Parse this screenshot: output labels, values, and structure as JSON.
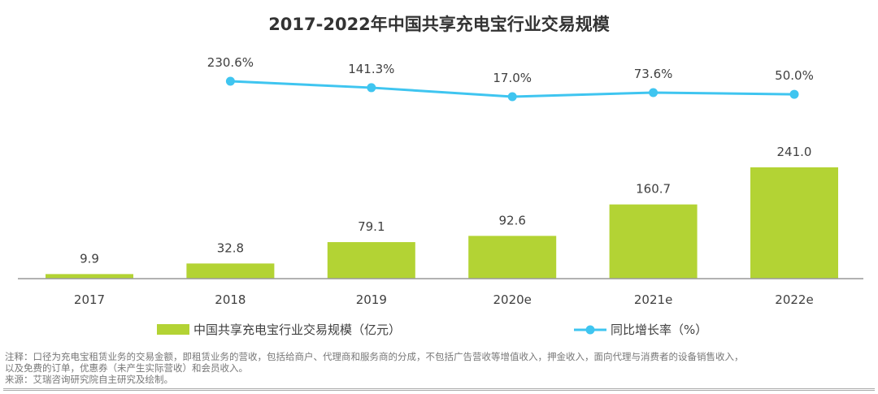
{
  "chart_data": {
    "type": "bar+line",
    "title": "2017-2022年中国共享充电宝行业交易规模",
    "categories": [
      "2017",
      "2018",
      "2019",
      "2020e",
      "2021e",
      "2022e"
    ],
    "series": [
      {
        "name": "中国共享充电宝行业交易规模（亿元）",
        "type": "bar",
        "color": "#b3d334",
        "values": [
          9.9,
          32.8,
          79.1,
          92.6,
          160.7,
          241.0
        ],
        "labels": [
          "9.9",
          "32.8",
          "79.1",
          "92.6",
          "160.7",
          "241.0"
        ]
      },
      {
        "name": "同比增长率（%）",
        "type": "line",
        "color": "#3fc5f0",
        "values": [
          null,
          230.6,
          141.3,
          17.0,
          73.6,
          50.0
        ],
        "labels": [
          "",
          "230.6%",
          "141.3%",
          "17.0%",
          "73.6%",
          "50.0%"
        ]
      }
    ],
    "legend_position": "bottom",
    "grid": false
  },
  "notes": {
    "line1": "注释：口径为充电宝租赁业务的交易金额，即租赁业务的营收，包括给商户、代理商和服务商的分成，不包括广告营收等增值收入，押金收入，面向代理与消费者的设备销售收入，",
    "line2": "以及免费的订单，优惠券（未产生实际营收）和会员收入。",
    "source": "来源：艾瑞咨询研究院自主研究及绘制。"
  }
}
